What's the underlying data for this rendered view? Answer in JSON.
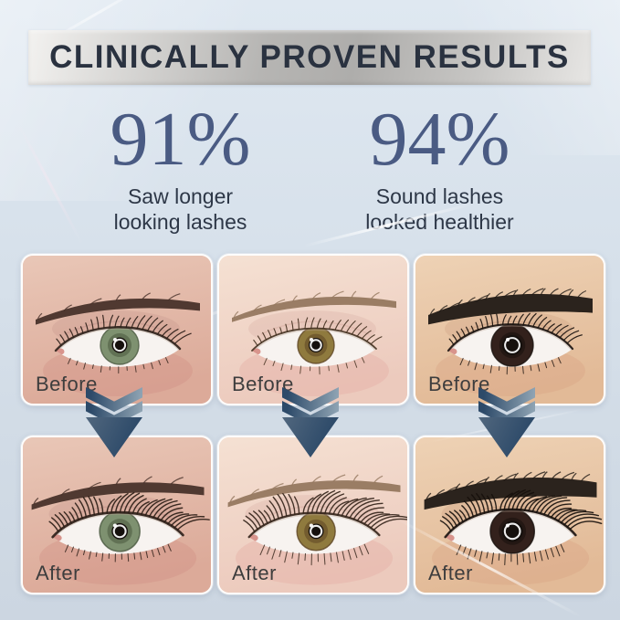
{
  "banner": {
    "title": "CLINICALLY PROVEN RESULTS"
  },
  "colors": {
    "background_top": "#dfe8f1",
    "background_bottom": "#ccd6e1",
    "banner_metal_light": "#f3f2f0",
    "banner_metal_dark": "#aeadab",
    "banner_text": "#2a3240",
    "stat_value": "#4a5b83",
    "caption_text": "#2d3747",
    "arrow_dark": "#2d4a69",
    "arrow_light": "#8da2b2",
    "photo_label": "#3d3d3d",
    "photo_border": "#ffffff"
  },
  "stats": [
    {
      "value": "91%",
      "caption": [
        "Saw longer",
        "looking lashes"
      ]
    },
    {
      "value": "94%",
      "caption": [
        "Sound lashes",
        "looked healthier"
      ]
    }
  ],
  "arrow_icon": "triple-chevron-down",
  "photos": [
    {
      "label": "Before",
      "eye": {
        "skin_top": "#e9c7b7",
        "skin_bottom": "#dcaa99",
        "blush": "#cf8d83",
        "lid": "#c4948c",
        "brow_color": "#48322a",
        "brow_thick": 14,
        "brow_lift": 0,
        "strays": 6,
        "iris": "#7e9170",
        "iris_dark": "#49573e",
        "iris_r": 21,
        "pupil_r": 8.5,
        "lash": "#2e2019",
        "liner_w": 2.4,
        "count": 24,
        "len": 13,
        "curl": 0.2,
        "lower_len": 6,
        "lash_w": 1.2,
        "open": 1.0
      }
    },
    {
      "label": "Before",
      "eye": {
        "skin_top": "#f5e1d3",
        "skin_bottom": "#eccabd",
        "blush": "#e3aaa2",
        "lid": "#d8ada2",
        "brow_color": "#95785f",
        "brow_thick": 12,
        "brow_lift": -2,
        "strays": 8,
        "iris": "#8f7a3e",
        "iris_dark": "#5d4323",
        "iris_r": 20,
        "pupil_r": 8,
        "lash": "#43301f",
        "liner_w": 1.8,
        "count": 22,
        "len": 11,
        "curl": 0.16,
        "lower_len": 7,
        "lash_w": 1.1,
        "open": 0.95
      }
    },
    {
      "label": "Before",
      "eye": {
        "skin_top": "#eed2b5",
        "skin_bottom": "#e2ba97",
        "blush": "#d7a181",
        "lid": "#c99c7e",
        "brow_color": "#211a15",
        "brow_thick": 26,
        "brow_lift": -5,
        "strays": 17,
        "iris": "#33211c",
        "iris_dark": "#16100d",
        "iris_r": 23,
        "pupil_r": 11,
        "lash": "#1a120e",
        "liner_w": 2.2,
        "count": 26,
        "len": 12,
        "curl": 0.25,
        "lower_len": 7,
        "lash_w": 1.2,
        "open": 1.12
      }
    },
    {
      "label": "After",
      "eye": {
        "skin_top": "#e9c7b7",
        "skin_bottom": "#dcaa99",
        "blush": "#cf8d83",
        "lid": "#c4948c",
        "brow_color": "#48322a",
        "brow_thick": 14,
        "brow_lift": 0,
        "strays": 6,
        "iris": "#7e9170",
        "iris_dark": "#49573e",
        "iris_r": 21,
        "pupil_r": 8.5,
        "lash": "#2b1d16",
        "liner_w": 2.6,
        "count": 32,
        "len": 21,
        "curl": 0.45,
        "lower_len": 7,
        "lash_w": 1.35,
        "open": 1.0
      }
    },
    {
      "label": "After",
      "eye": {
        "skin_top": "#f5e1d3",
        "skin_bottom": "#eccabd",
        "blush": "#e3aaa2",
        "lid": "#d8ada2",
        "brow_color": "#95785f",
        "brow_thick": 12,
        "brow_lift": -2,
        "strays": 8,
        "iris": "#8f7a3e",
        "iris_dark": "#5d4323",
        "iris_r": 20,
        "pupil_r": 8,
        "lash": "#34241a",
        "liner_w": 2.2,
        "count": 32,
        "len": 25,
        "curl": 0.52,
        "lower_len": 10,
        "lash_w": 1.3,
        "open": 0.98
      }
    },
    {
      "label": "After",
      "eye": {
        "skin_top": "#eed2b5",
        "skin_bottom": "#e2ba97",
        "blush": "#d7a181",
        "lid": "#c99c7e",
        "brow_color": "#211a15",
        "brow_thick": 26,
        "brow_lift": -5,
        "strays": 17,
        "iris": "#33211c",
        "iris_dark": "#16100d",
        "iris_r": 23,
        "pupil_r": 11,
        "lash": "#17100c",
        "liner_w": 2.4,
        "count": 34,
        "len": 23,
        "curl": 0.58,
        "lower_len": 10,
        "lash_w": 1.35,
        "open": 1.12
      }
    }
  ]
}
